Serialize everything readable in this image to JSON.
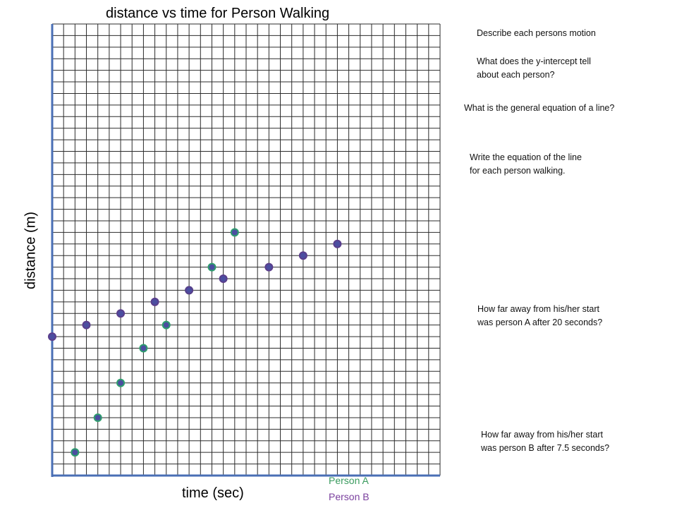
{
  "chart_data": {
    "type": "scatter",
    "title": "distance vs time for Person Walking",
    "xlabel": "time (sec)",
    "ylabel": "distance (m)",
    "grid": true,
    "xlim": [
      0,
      34
    ],
    "ylim": [
      0,
      39
    ],
    "legend": "bottom",
    "series": [
      {
        "name": "Person A",
        "color": "#2e9e6e",
        "points": [
          [
            2,
            2
          ],
          [
            4,
            5
          ],
          [
            6,
            8
          ],
          [
            8,
            11
          ],
          [
            10,
            13
          ],
          [
            12,
            16
          ],
          [
            14,
            18
          ],
          [
            16,
            21
          ]
        ]
      },
      {
        "name": "Person B",
        "color": "#5a3e8c",
        "points": [
          [
            0,
            12
          ],
          [
            3,
            13
          ],
          [
            6,
            14
          ],
          [
            9,
            15
          ],
          [
            12,
            16
          ],
          [
            15,
            17
          ],
          [
            19,
            18
          ],
          [
            22,
            19
          ],
          [
            25,
            20
          ]
        ]
      }
    ]
  },
  "questions": {
    "q1": "Describe each persons motion",
    "q2": "What does the y-intercept tell\nabout each person?",
    "q3": "What is the general equation of a line?",
    "q4": "Write the equation of the line\nfor each person walking.",
    "q5": "How far away from his/her start\nwas person A after 20 seconds?",
    "q6": "How far away from his/her start\nwas person B after 7.5 seconds?"
  },
  "colors": {
    "grid_line": "#2b2b2b",
    "axis": "#4a6fb5",
    "marker_fill": "#4b4ea0",
    "person_a_ring": "#2e9e6e",
    "person_b_ring": "#5a3e8c",
    "legend_a_text": "#3a9b5e",
    "legend_b_text": "#7a3f9e"
  }
}
